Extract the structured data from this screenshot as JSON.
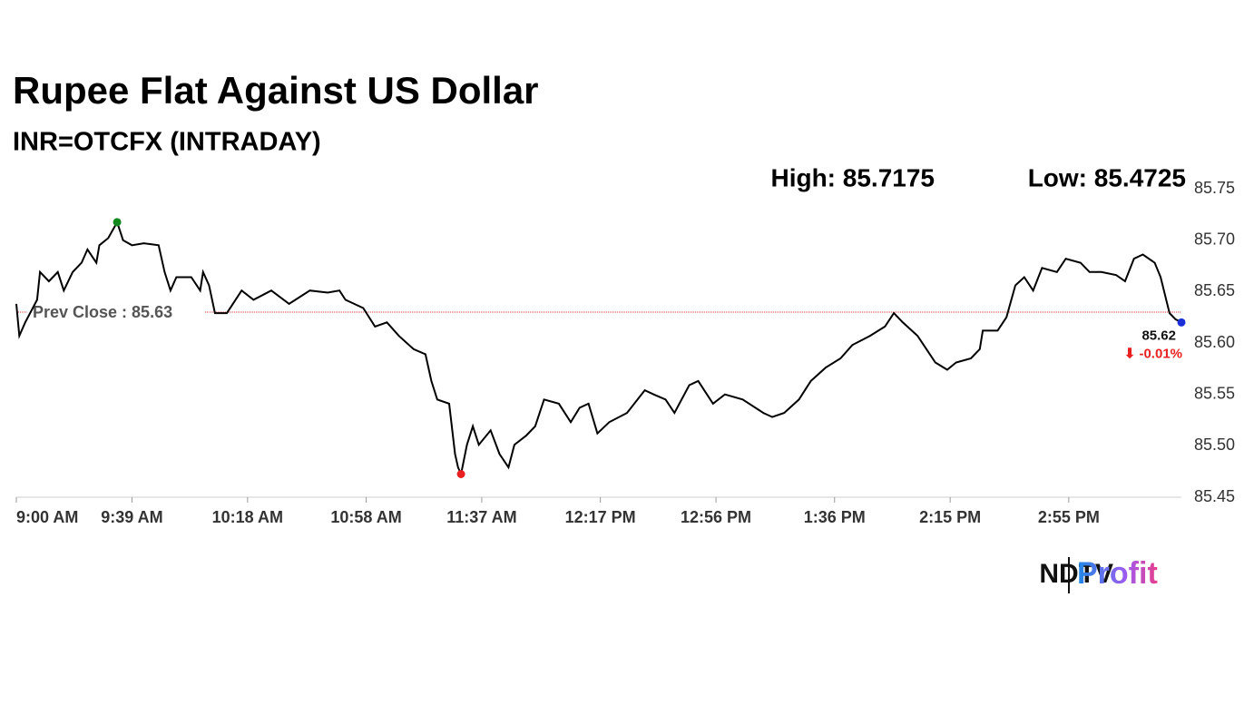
{
  "chart_data": {
    "type": "line",
    "title": "Rupee Flat Against US Dollar",
    "subtitle": "INR=OTCFX (INTRADAY)",
    "high_label": "High: 85.7175",
    "low_label": "Low: 85.4725",
    "last_label": "85.62",
    "change_label": "⬇ -0.01%",
    "prev_close": {
      "value": 85.63,
      "label": "Prev Close : 85.63"
    },
    "brand": [
      "NDTV",
      "Profit"
    ],
    "color": "#000000",
    "x": [
      540,
      541,
      543,
      547,
      548,
      551,
      554,
      556,
      559,
      562,
      564,
      567,
      568,
      571,
      574,
      576,
      579,
      583,
      588,
      590,
      592,
      594,
      599,
      602,
      603,
      605,
      607,
      611,
      616,
      620,
      626,
      632,
      639,
      645,
      649,
      651,
      657,
      661,
      665,
      669,
      674,
      678,
      680,
      682,
      686,
      688,
      689,
      690,
      692,
      694,
      696,
      700,
      703,
      706,
      708,
      712,
      715,
      718,
      723,
      727,
      730,
      733,
      736,
      740,
      746,
      752,
      755,
      759,
      762,
      767,
      770,
      775,
      779,
      785,
      792,
      795,
      799,
      804,
      808,
      813,
      818,
      822,
      828,
      833,
      836,
      839,
      844,
      847,
      850,
      854,
      857,
      862,
      865,
      866,
      871,
      874,
      877,
      880,
      883,
      886,
      891,
      894,
      899,
      902,
      906,
      911,
      914,
      917,
      920,
      924,
      926,
      929,
      931,
      933
    ],
    "values": [
      85.638,
      85.607,
      85.62,
      85.642,
      85.669,
      85.66,
      85.669,
      85.651,
      85.669,
      85.678,
      85.691,
      85.678,
      85.695,
      85.702,
      85.7175,
      85.7,
      85.695,
      85.697,
      85.695,
      85.669,
      85.651,
      85.664,
      85.664,
      85.651,
      85.669,
      85.656,
      85.629,
      85.629,
      85.651,
      85.642,
      85.651,
      85.638,
      85.651,
      85.649,
      85.651,
      85.642,
      85.634,
      85.616,
      85.62,
      85.607,
      85.594,
      85.589,
      85.563,
      85.545,
      85.541,
      85.492,
      85.479,
      85.4725,
      85.501,
      85.519,
      85.501,
      85.515,
      85.492,
      85.479,
      85.501,
      85.51,
      85.519,
      85.545,
      85.541,
      85.523,
      85.537,
      85.541,
      85.512,
      85.523,
      85.532,
      85.554,
      85.55,
      85.545,
      85.532,
      85.559,
      85.563,
      85.541,
      85.55,
      85.545,
      85.532,
      85.528,
      85.532,
      85.545,
      85.563,
      85.576,
      85.585,
      85.598,
      85.607,
      85.616,
      85.629,
      85.62,
      85.607,
      85.594,
      85.581,
      85.574,
      85.581,
      85.585,
      85.594,
      85.612,
      85.612,
      85.625,
      85.656,
      85.664,
      85.651,
      85.673,
      85.669,
      85.682,
      85.678,
      85.669,
      85.669,
      85.666,
      85.66,
      85.682,
      85.686,
      85.678,
      85.664,
      85.629,
      85.623,
      85.62
    ],
    "xlim": [
      540,
      933
    ],
    "ylim": [
      85.45,
      85.75
    ],
    "xticks": [
      {
        "value": 540,
        "label": "9:00 AM"
      },
      {
        "value": 579,
        "label": "9:39 AM"
      },
      {
        "value": 618,
        "label": "10:18 AM"
      },
      {
        "value": 658,
        "label": "10:58 AM"
      },
      {
        "value": 697,
        "label": "11:37 AM"
      },
      {
        "value": 737,
        "label": "12:17 PM"
      },
      {
        "value": 776,
        "label": "12:56 PM"
      },
      {
        "value": 816,
        "label": "1:36 PM"
      },
      {
        "value": 855,
        "label": "2:15 PM"
      },
      {
        "value": 895,
        "label": "2:55 PM"
      }
    ],
    "yticks": [
      85.45,
      {
        "value": 85.5,
        "label": "85.50"
      },
      85.55,
      {
        "value": 85.6,
        "label": "85.60"
      },
      85.65,
      {
        "value": 85.7,
        "label": "85.70"
      },
      85.75
    ]
  }
}
